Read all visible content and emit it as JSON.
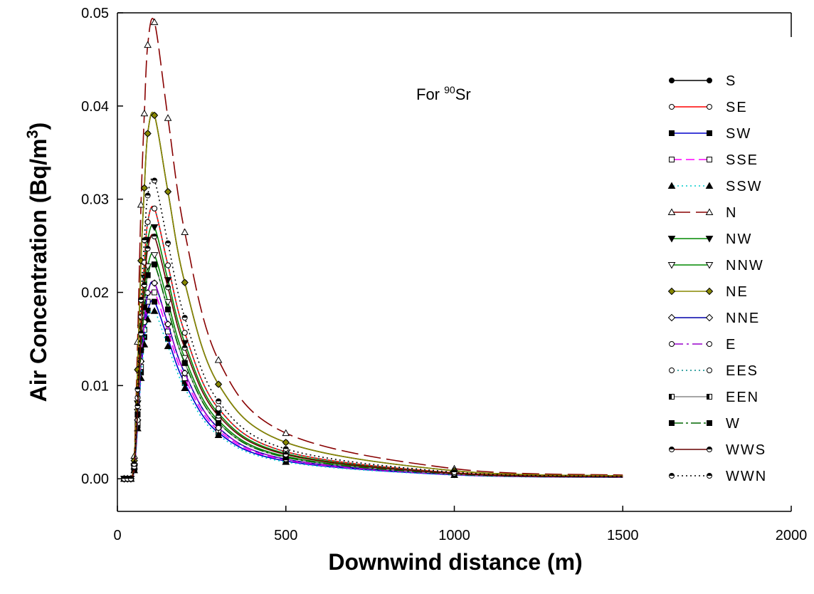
{
  "chart_data": {
    "type": "line",
    "annotation": {
      "prefix": "For ",
      "sup": "90",
      "suffix": "Sr"
    },
    "xlabel": "Downwind distance (m)",
    "ylabel": {
      "main": "Air Concentration (Bq/m",
      "sup": "3",
      "tail": ")"
    },
    "xlim": [
      0,
      2000
    ],
    "ylim": [
      -0.0035,
      0.05
    ],
    "x_ticks": [
      "0",
      "500",
      "1000",
      "1500",
      "2000"
    ],
    "y_ticks": [
      "0.00",
      "0.01",
      "0.02",
      "0.03",
      "0.04",
      "0.05"
    ],
    "grid": false,
    "legend_position": "right",
    "x": [
      20,
      30,
      40,
      50,
      60,
      70,
      80,
      90,
      110,
      150,
      200,
      300,
      500,
      1000,
      1500
    ],
    "series": [
      {
        "name": "S",
        "color": "#000000",
        "dash": "",
        "marker": "circle-filled",
        "peak": 0.039
      },
      {
        "name": "SE",
        "color": "#ff0000",
        "dash": "",
        "marker": "circle-open",
        "peak": 0.029
      },
      {
        "name": "SW",
        "color": "#0000cc",
        "dash": "",
        "marker": "square-filled",
        "peak": 0.019
      },
      {
        "name": "SSE",
        "color": "#ff00ff",
        "dash": "12 6",
        "marker": "square-open",
        "peak": 0.02
      },
      {
        "name": "SSW",
        "color": "#00cccc",
        "dash": "2 4",
        "marker": "triangle-filled",
        "peak": 0.018
      },
      {
        "name": "N",
        "color": "#880000",
        "dash": "24 8",
        "marker": "triangle-open",
        "peak": 0.049
      },
      {
        "name": "NW",
        "color": "#008800",
        "dash": "",
        "marker": "tri-down-filled",
        "peak": 0.027
      },
      {
        "name": "NNW",
        "color": "#008800",
        "dash": "",
        "marker": "tri-down-open",
        "peak": 0.024
      },
      {
        "name": "NE",
        "color": "#888800",
        "dash": "",
        "marker": "diamond-filled",
        "peak": 0.039
      },
      {
        "name": "NNE",
        "color": "#0000aa",
        "dash": "",
        "marker": "diamond-open",
        "peak": 0.021
      },
      {
        "name": "E",
        "color": "#9900cc",
        "dash": "14 5 3 5",
        "marker": "circle-open",
        "peak": 0.021
      },
      {
        "name": "EES",
        "color": "#008888",
        "dash": "2 4",
        "marker": "circle-open",
        "peak": 0.029
      },
      {
        "name": "EEN",
        "color": "#888888",
        "dash": "",
        "marker": "square-half",
        "peak": 0.023
      },
      {
        "name": "W",
        "color": "#006600",
        "dash": "14 4 3 4",
        "marker": "square-filled",
        "peak": 0.023
      },
      {
        "name": "WWS",
        "color": "#660000",
        "dash": "",
        "marker": "circle-half",
        "peak": 0.026
      },
      {
        "name": "WWN",
        "color": "#000000",
        "dash": "2 4",
        "marker": "circle-half",
        "peak": 0.032
      }
    ]
  }
}
